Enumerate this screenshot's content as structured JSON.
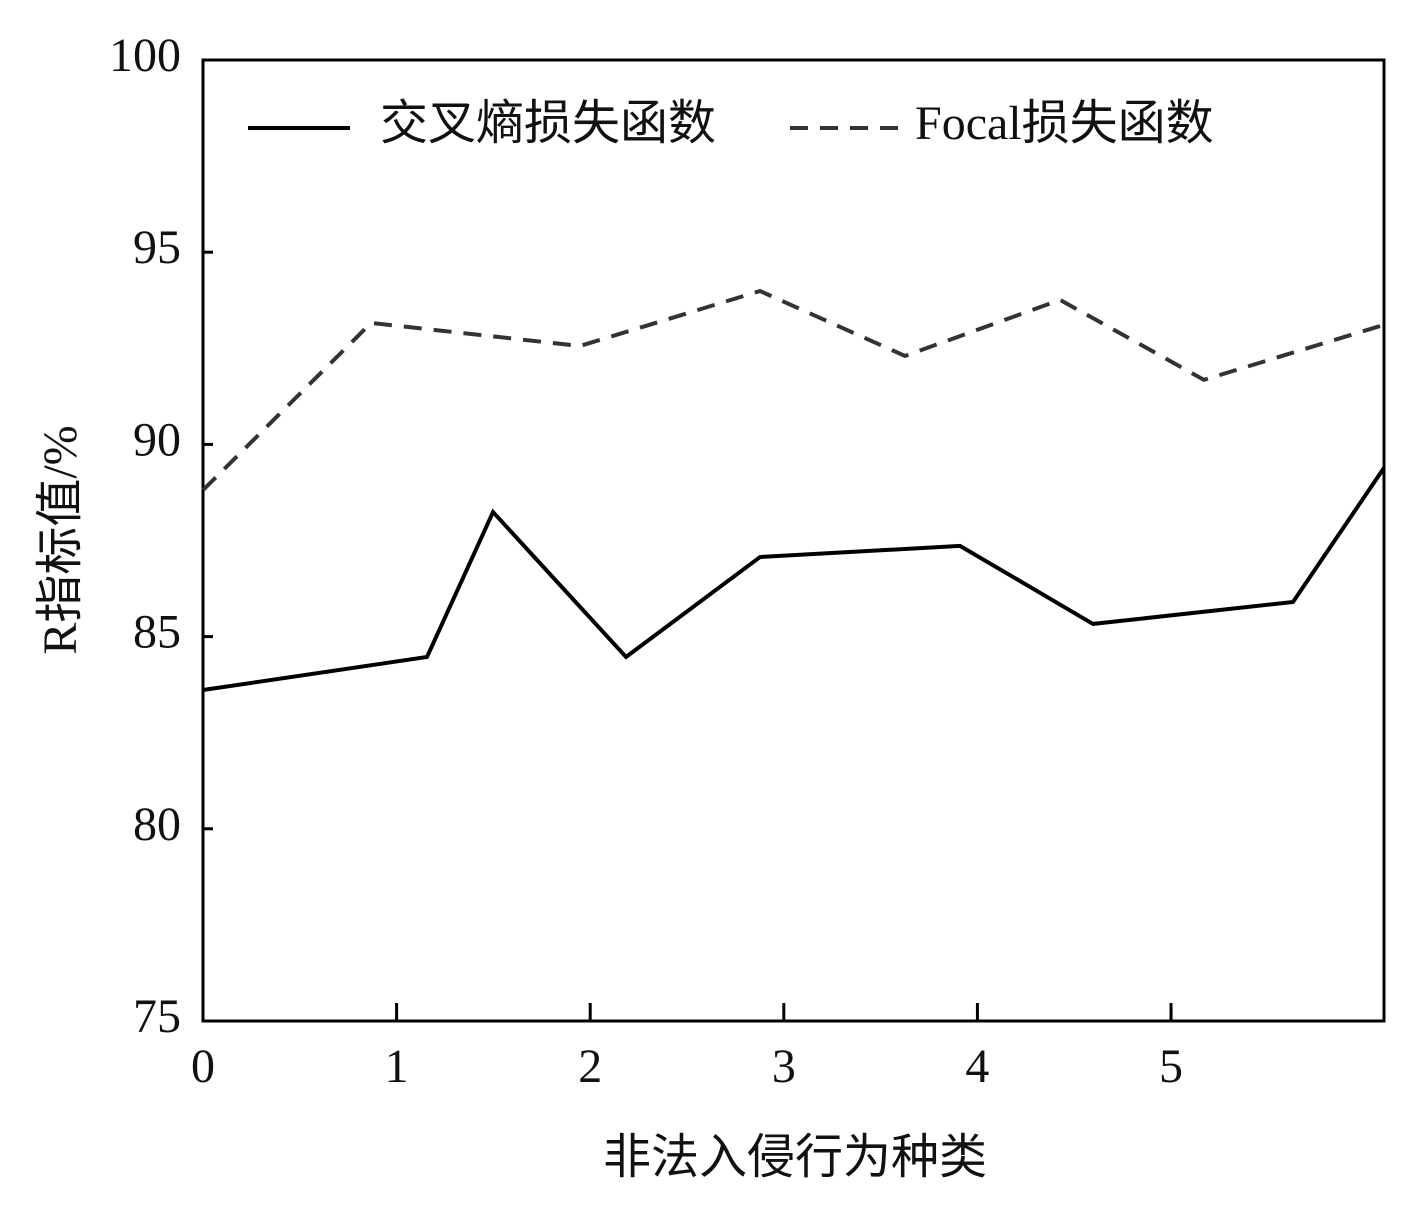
{
  "chart_data": {
    "type": "line",
    "x_label": "非法入侵行为种类",
    "y_label": "R指标值/%",
    "xlim": [
      0,
      6.1
    ],
    "xticks": [
      0,
      1,
      2,
      3,
      4,
      5
    ],
    "ylim": [
      75,
      100
    ],
    "yticks": [
      75,
      80,
      85,
      90,
      95,
      100
    ],
    "legend": "top",
    "series": [
      {
        "name": "交叉熵损失函数",
        "color": "#000000",
        "dash": "solid",
        "x": [
          0,
          1.157,
          1.498,
          2.185,
          2.877,
          3.91,
          4.597,
          5.63,
          6.1
        ],
        "values": [
          83.61,
          84.47,
          88.24,
          84.47,
          87.07,
          87.36,
          85.33,
          85.9,
          89.39
        ]
      },
      {
        "name": "Focal损失函数",
        "color": "#333333",
        "dash": "dashed",
        "x": [
          0,
          0.868,
          1.947,
          2.877,
          3.626,
          4.427,
          5.17,
          6.1
        ],
        "values": [
          88.81,
          93.16,
          92.56,
          93.99,
          92.3,
          93.76,
          91.68,
          93.11
        ]
      }
    ]
  }
}
